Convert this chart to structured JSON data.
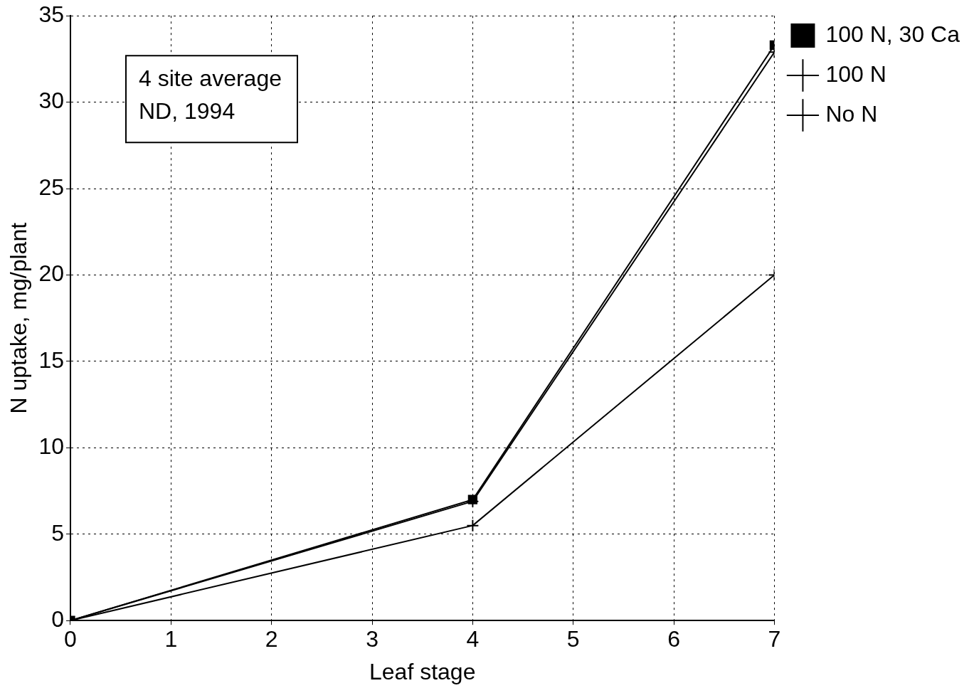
{
  "chart_data": {
    "type": "line",
    "xlabel": "Leaf stage",
    "ylabel": "N uptake, mg/plant",
    "x": [
      0,
      4,
      7
    ],
    "series": [
      {
        "name": "100 N, 30 Ca",
        "color": "#000000",
        "values": [
          0,
          7.0,
          33.3
        ],
        "marker": "square"
      },
      {
        "name": "100 N",
        "color": "#000000",
        "values": [
          0,
          6.9,
          32.9
        ],
        "marker": "cross"
      },
      {
        "name": "No N",
        "color": "#000000",
        "values": [
          0,
          5.5,
          20.0
        ],
        "marker": "cross"
      }
    ],
    "xlim": [
      0,
      7
    ],
    "xticks": [
      0,
      1,
      2,
      3,
      4,
      5,
      6,
      7
    ],
    "ylim": [
      0,
      35
    ],
    "yticks": [
      0,
      5,
      10,
      15,
      20,
      25,
      30,
      35
    ],
    "grid": true,
    "legend": "right",
    "line_style": "solid",
    "annotations": [
      "4 site average",
      "ND, 1994"
    ]
  }
}
